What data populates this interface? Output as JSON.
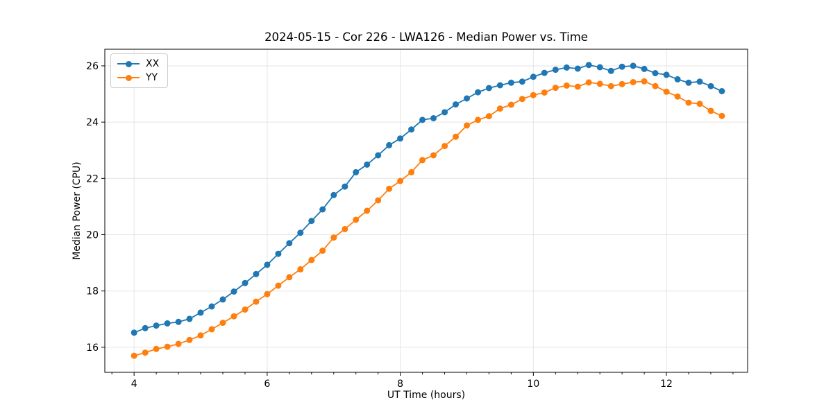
{
  "chart_data": {
    "type": "line",
    "title": "2024-05-15 - Cor 226 - LWA126 - Median Power vs. Time",
    "xlabel": "UT Time (hours)",
    "ylabel": "Median Power (CPU)",
    "grid": true,
    "legend_position": "upper left",
    "xlim": [
      3.56,
      13.22
    ],
    "ylim": [
      15.11,
      26.59
    ],
    "x_ticks": [
      4,
      6,
      8,
      10,
      12
    ],
    "x_tick_labels": [
      "4",
      "6",
      "8",
      "10",
      "12"
    ],
    "x_minor_step": 0.3333333,
    "y_ticks": [
      16,
      18,
      20,
      22,
      24,
      26
    ],
    "y_tick_labels": [
      "16",
      "18",
      "20",
      "22",
      "24",
      "26"
    ],
    "x": [
      4.0,
      4.167,
      4.333,
      4.5,
      4.667,
      4.833,
      5.0,
      5.167,
      5.333,
      5.5,
      5.667,
      5.833,
      6.0,
      6.167,
      6.333,
      6.5,
      6.667,
      6.833,
      7.0,
      7.167,
      7.333,
      7.5,
      7.667,
      7.833,
      8.0,
      8.167,
      8.333,
      8.5,
      8.667,
      8.833,
      9.0,
      9.167,
      9.333,
      9.5,
      9.667,
      9.833,
      10.0,
      10.167,
      10.333,
      10.5,
      10.667,
      10.833,
      11.0,
      11.167,
      11.333,
      11.5,
      11.667,
      11.833,
      12.0,
      12.167,
      12.333,
      12.5,
      12.667,
      12.833
    ],
    "series": [
      {
        "name": "XX",
        "color": "#1f77b4",
        "values": [
          16.52,
          16.68,
          16.77,
          16.85,
          16.9,
          17.01,
          17.23,
          17.45,
          17.7,
          17.98,
          18.28,
          18.6,
          18.93,
          19.32,
          19.7,
          20.07,
          20.49,
          20.9,
          21.41,
          21.71,
          22.22,
          22.49,
          22.82,
          23.18,
          23.42,
          23.74,
          24.08,
          24.14,
          24.35,
          24.63,
          24.84,
          25.06,
          25.21,
          25.31,
          25.4,
          25.44,
          25.61,
          25.75,
          25.86,
          25.94,
          25.9,
          26.03,
          25.95,
          25.82,
          25.97,
          26.0,
          25.89,
          25.74,
          25.68,
          25.52,
          25.4,
          25.44,
          25.28,
          25.1
        ]
      },
      {
        "name": "YY",
        "color": "#ff7f0e",
        "values": [
          15.7,
          15.81,
          15.94,
          16.02,
          16.12,
          16.26,
          16.42,
          16.64,
          16.87,
          17.1,
          17.34,
          17.62,
          17.89,
          18.19,
          18.49,
          18.77,
          19.1,
          19.43,
          19.9,
          20.2,
          20.53,
          20.85,
          21.22,
          21.63,
          21.91,
          22.22,
          22.65,
          22.82,
          23.15,
          23.48,
          23.88,
          24.08,
          24.21,
          24.48,
          24.62,
          24.82,
          24.96,
          25.05,
          25.22,
          25.3,
          25.26,
          25.41,
          25.36,
          25.28,
          25.35,
          25.42,
          25.45,
          25.28,
          25.08,
          24.91,
          24.69,
          24.65,
          24.4,
          24.22
        ]
      }
    ],
    "style": {
      "grid_color": "#e5e5e5",
      "spine_color": "#000000",
      "tick_color": "#000000",
      "background": "#ffffff"
    }
  }
}
